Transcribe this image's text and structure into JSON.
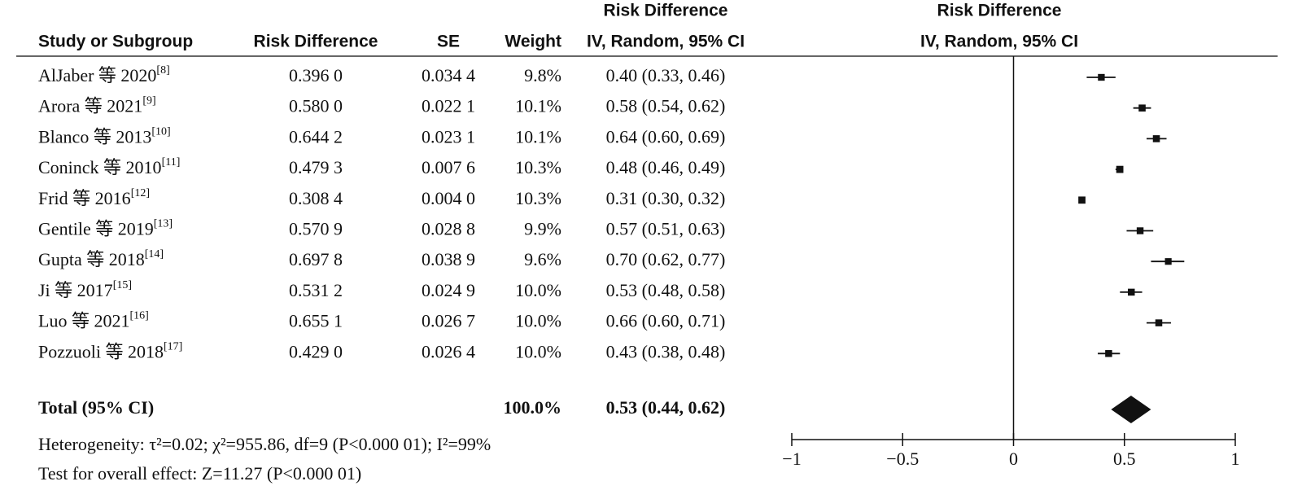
{
  "chart_data": {
    "type": "forest",
    "headers": {
      "study": "Study or Subgroup",
      "rd": "Risk Difference",
      "se": "SE",
      "weight": "Weight",
      "ci_top": "Risk Difference",
      "ci": "IV, Random, 95% CI",
      "plot_top": "Risk Difference",
      "plot": "IV, Random, 95% CI"
    },
    "studies": [
      {
        "name": "AlJaber 等 2020",
        "ref": "[8]",
        "rd": 0.396,
        "rd_label": "0.396 0",
        "se": "0.034 4",
        "weight": 9.8,
        "weight_label": "9.8%",
        "ci": "0.40 (0.33, 0.46)",
        "lo": 0.33,
        "hi": 0.46
      },
      {
        "name": "Arora 等 2021",
        "ref": "[9]",
        "rd": 0.58,
        "rd_label": "0.580 0",
        "se": "0.022 1",
        "weight": 10.1,
        "weight_label": "10.1%",
        "ci": "0.58 (0.54, 0.62)",
        "lo": 0.54,
        "hi": 0.62
      },
      {
        "name": "Blanco 等 2013",
        "ref": "[10]",
        "rd": 0.6442,
        "rd_label": "0.644 2",
        "se": "0.023 1",
        "weight": 10.1,
        "weight_label": "10.1%",
        "ci": "0.64 (0.60, 0.69)",
        "lo": 0.6,
        "hi": 0.69
      },
      {
        "name": "Coninck 等 2010",
        "ref": "[11]",
        "rd": 0.4793,
        "rd_label": "0.479 3",
        "se": "0.007 6",
        "weight": 10.3,
        "weight_label": "10.3%",
        "ci": "0.48 (0.46, 0.49)",
        "lo": 0.46,
        "hi": 0.49
      },
      {
        "name": "Frid 等 2016",
        "ref": "[12]",
        "rd": 0.3084,
        "rd_label": "0.308 4",
        "se": "0.004 0",
        "weight": 10.3,
        "weight_label": "10.3%",
        "ci": "0.31 (0.30, 0.32)",
        "lo": 0.3,
        "hi": 0.32
      },
      {
        "name": "Gentile 等 2019",
        "ref": "[13]",
        "rd": 0.5709,
        "rd_label": "0.570 9",
        "se": "0.028 8",
        "weight": 9.9,
        "weight_label": "9.9%",
        "ci": "0.57 (0.51, 0.63)",
        "lo": 0.51,
        "hi": 0.63
      },
      {
        "name": "Gupta 等 2018",
        "ref": "[14]",
        "rd": 0.6978,
        "rd_label": "0.697 8",
        "se": "0.038 9",
        "weight": 9.6,
        "weight_label": "9.6%",
        "ci": "0.70 (0.62, 0.77)",
        "lo": 0.62,
        "hi": 0.77
      },
      {
        "name": "Ji 等 2017",
        "ref": "[15]",
        "rd": 0.5312,
        "rd_label": "0.531 2",
        "se": "0.024 9",
        "weight": 10.0,
        "weight_label": "10.0%",
        "ci": "0.53 (0.48, 0.58)",
        "lo": 0.48,
        "hi": 0.58
      },
      {
        "name": "Luo 等 2021",
        "ref": "[16]",
        "rd": 0.6551,
        "rd_label": "0.655 1",
        "se": "0.026 7",
        "weight": 10.0,
        "weight_label": "10.0%",
        "ci": "0.66 (0.60, 0.71)",
        "lo": 0.6,
        "hi": 0.71
      },
      {
        "name": "Pozzuoli 等 2018",
        "ref": "[17]",
        "rd": 0.429,
        "rd_label": "0.429 0",
        "se": "0.026 4",
        "weight": 10.0,
        "weight_label": "10.0%",
        "ci": "0.43 (0.38, 0.48)",
        "lo": 0.38,
        "hi": 0.48
      }
    ],
    "total": {
      "name": "Total (95% CI)",
      "weight_label": "100.0%",
      "ci": "0.53 (0.44, 0.62)",
      "est": 0.53,
      "lo": 0.44,
      "hi": 0.62
    },
    "heterogeneity": "Heterogeneity: τ²=0.02; χ²=955.86, df=9 (P<0.000 01); I²=99%",
    "overall": "Test for overall effect: Z=11.27 (P<0.000 01)",
    "xlim": [
      -1,
      1
    ],
    "xticks": [
      {
        "value": -1,
        "label": "−1"
      },
      {
        "value": -0.5,
        "label": "−0.5"
      },
      0,
      0.5,
      1
    ],
    "color": "#111111"
  }
}
